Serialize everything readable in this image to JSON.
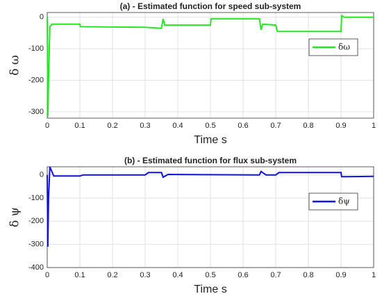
{
  "chart_data": [
    {
      "type": "line",
      "title": "(a) - Estimated function for  speed sub-system",
      "xlabel": "Time s",
      "ylabel": "δ ω",
      "x": [
        0,
        0.002,
        0.004,
        0.008,
        0.015,
        0.1,
        0.102,
        0.3,
        0.35,
        0.355,
        0.36,
        0.5,
        0.502,
        0.65,
        0.655,
        0.66,
        0.7,
        0.705,
        0.9,
        0.902,
        0.91,
        1
      ],
      "series": [
        {
          "name": "δω",
          "color": "#22e822",
          "values": [
            0,
            -315,
            -200,
            -30,
            -22,
            -22,
            -30,
            -32,
            -35,
            -5,
            -25,
            -25,
            -5,
            -5,
            -40,
            -22,
            -25,
            -45,
            -45,
            5,
            0,
            0
          ]
        }
      ],
      "xlim": [
        0,
        1
      ],
      "xticks": [
        0,
        0.1,
        0.2,
        0.3,
        0.4,
        0.5,
        0.6,
        0.7,
        0.8,
        0.9,
        1
      ],
      "ylim": [
        -320,
        15
      ],
      "yticks": [
        0,
        -100,
        -200,
        -300
      ],
      "grid": true,
      "legend": "upper right"
    },
    {
      "type": "line",
      "title": "(b) - Estimated function for flux sub-system",
      "xlabel": "Time s",
      "ylabel": "δ ψ",
      "x": [
        0,
        0.002,
        0.004,
        0.008,
        0.02,
        0.1,
        0.11,
        0.3,
        0.31,
        0.35,
        0.355,
        0.37,
        0.65,
        0.655,
        0.67,
        0.7,
        0.71,
        0.9,
        0.902,
        1
      ],
      "series": [
        {
          "name": "δψ",
          "color": "#1010e0",
          "values": [
            0,
            -310,
            -100,
            35,
            -5,
            -5,
            0,
            0,
            10,
            10,
            -10,
            2,
            0,
            15,
            0,
            0,
            10,
            10,
            -8,
            -6
          ]
        }
      ],
      "xlim": [
        0,
        1
      ],
      "xticks": [
        0,
        0.1,
        0.2,
        0.3,
        0.4,
        0.5,
        0.6,
        0.7,
        0.8,
        0.9,
        1
      ],
      "ylim": [
        -400,
        35
      ],
      "yticks": [
        0,
        -100,
        -200,
        -300,
        -400
      ],
      "grid": true,
      "legend": "upper right"
    }
  ]
}
